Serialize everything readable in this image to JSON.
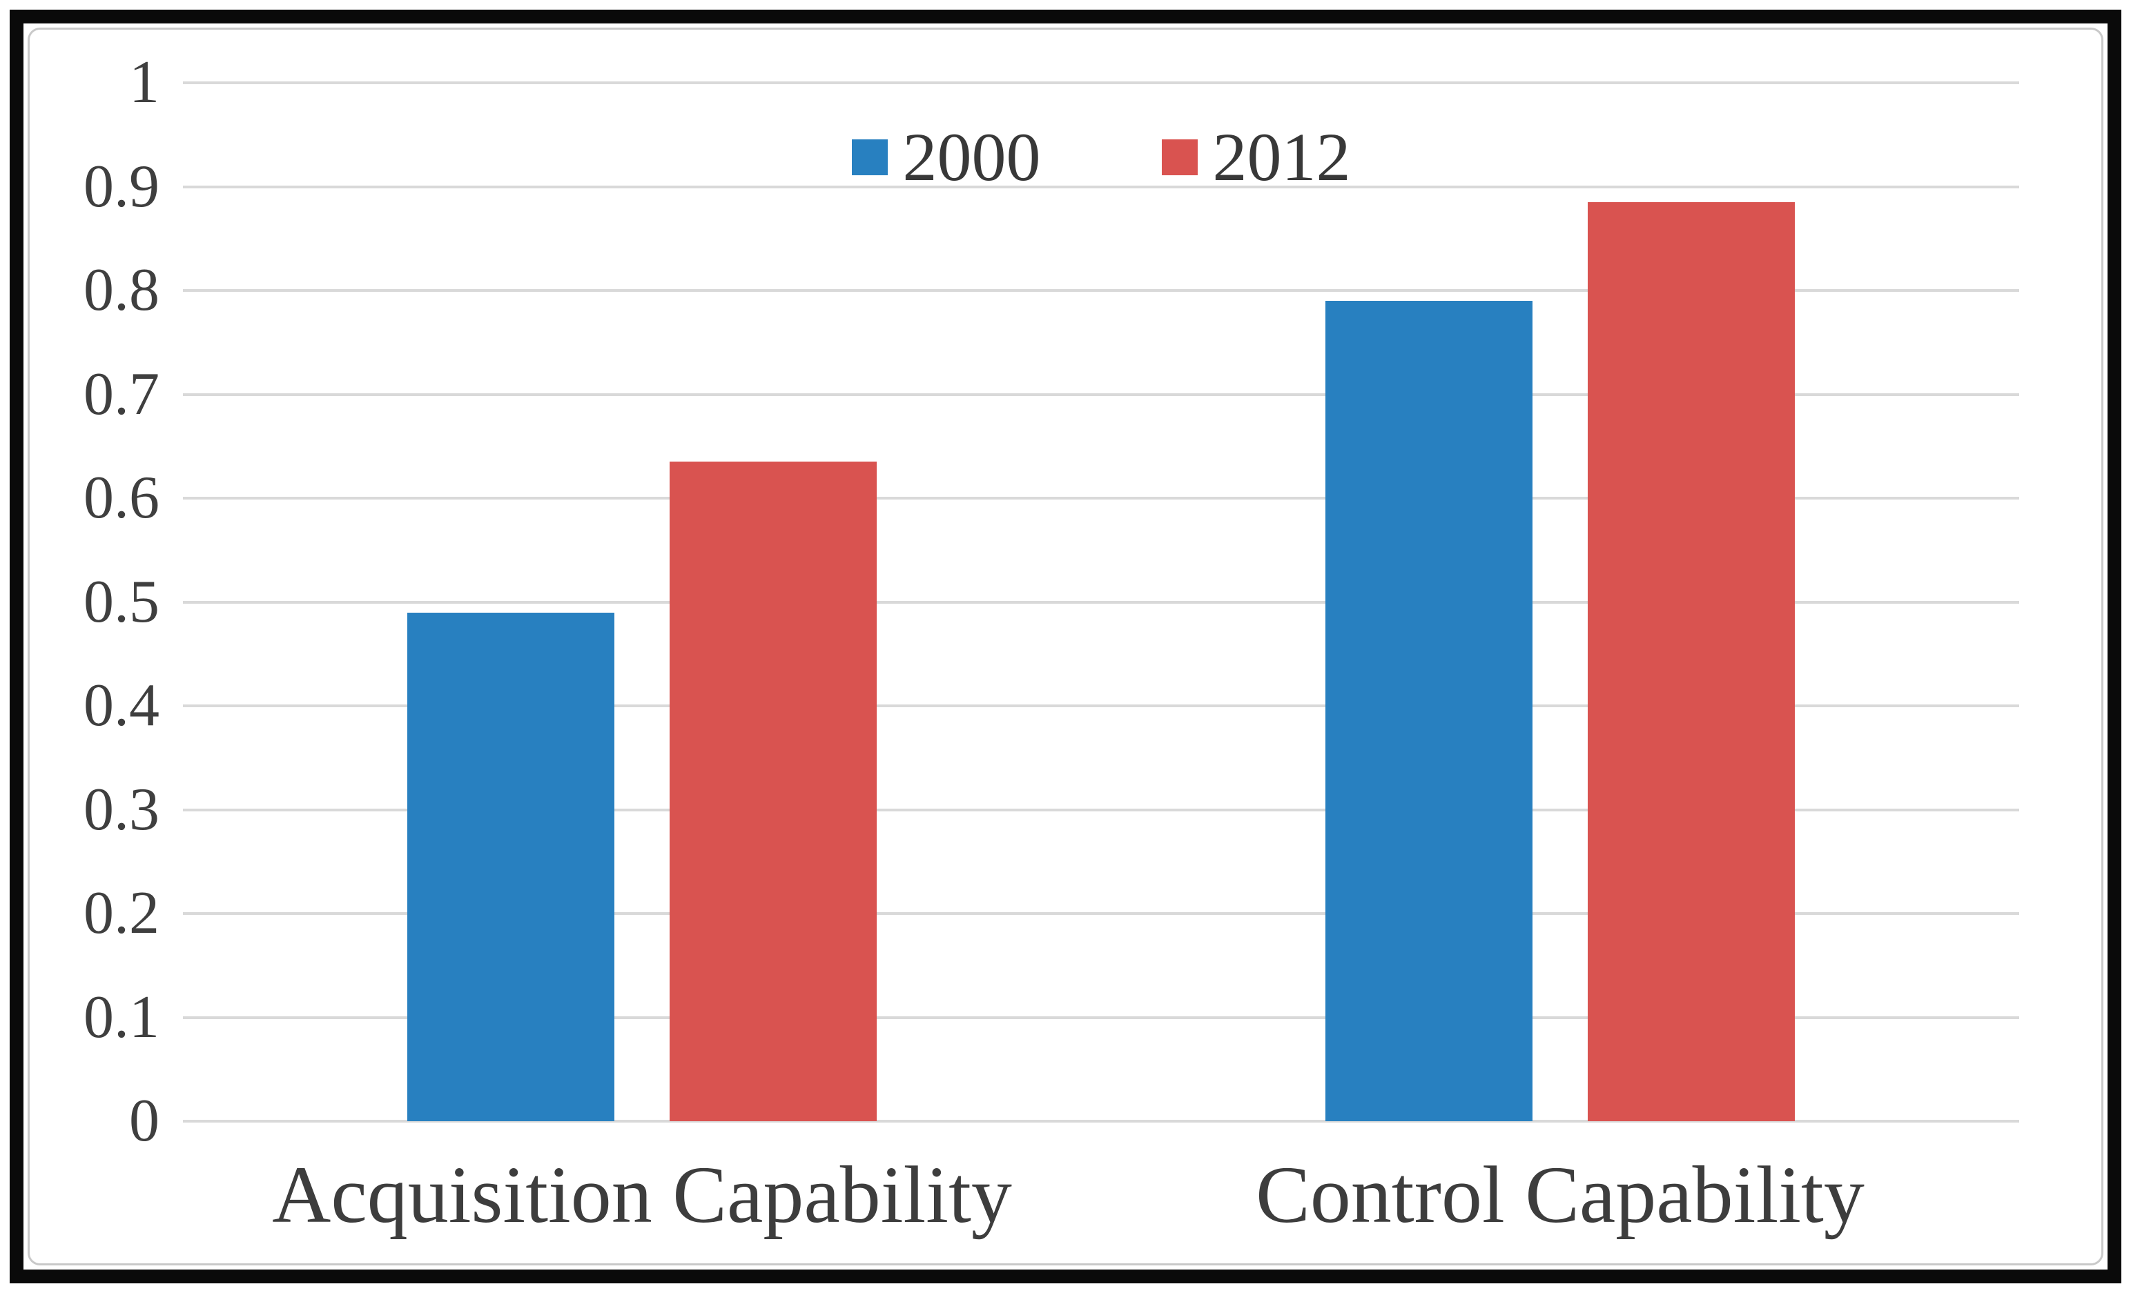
{
  "figure": {
    "background": "#ffffff",
    "outer_border_color": "#0a0a0a",
    "inner_border_color": "#c9c9c9"
  },
  "chart_data": {
    "type": "bar",
    "title": "",
    "xlabel": "",
    "ylabel": "",
    "categories": [
      "Acquisition Capability",
      "Control Capability"
    ],
    "series": [
      {
        "name": "2000",
        "color": "#2880c0",
        "values": [
          0.49,
          0.79
        ]
      },
      {
        "name": "2012",
        "color": "#d95350",
        "values": [
          0.635,
          0.885
        ]
      }
    ],
    "ylim": [
      0,
      1
    ],
    "ytick_step": 0.1,
    "ytick_labels": [
      "0",
      "0.1",
      "0.2",
      "0.3",
      "0.4",
      "0.5",
      "0.6",
      "0.7",
      "0.8",
      "0.9",
      "1"
    ],
    "grid": true,
    "gridline_color": "#d9d9d9",
    "legend_position": "top-center",
    "text_color": "#3f3f3f"
  }
}
